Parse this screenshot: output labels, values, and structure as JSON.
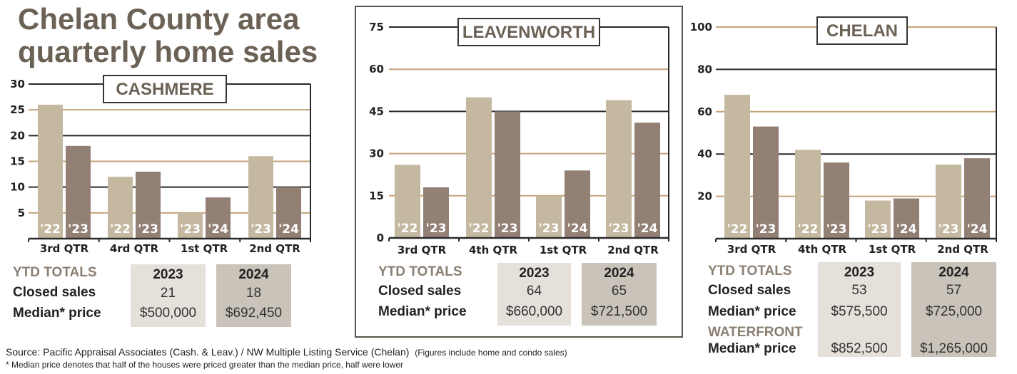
{
  "title_line1": "Chelan County area",
  "title_line2": "quarterly home sales",
  "colors": {
    "bar_prior": "#c4b8a0",
    "bar_current": "#938074",
    "grid_tan": "#c3a47c",
    "grid_dark": "#2a2a2a",
    "title": "#6b6155"
  },
  "chart_data": [
    {
      "type": "bar",
      "title": "CASHMERE",
      "categories": [
        "3rd QTR",
        "4rd QTR",
        "1st QTR",
        "2nd QTR"
      ],
      "bar_labels": [
        [
          "'22",
          "'23"
        ],
        [
          "'22",
          "'23"
        ],
        [
          "'23",
          "'24"
        ],
        [
          "'23",
          "'24"
        ]
      ],
      "values": [
        [
          26,
          18
        ],
        [
          12,
          13
        ],
        [
          5,
          8
        ],
        [
          16,
          10
        ]
      ],
      "yticks": [
        5,
        10,
        15,
        20,
        25,
        30
      ],
      "grid_colors": [
        "tan",
        "dark",
        "tan",
        "dark",
        "tan",
        "dark"
      ],
      "ylim": [
        0,
        30
      ]
    },
    {
      "type": "bar",
      "title": "LEAVENWORTH",
      "categories": [
        "3rd QTR",
        "4th QTR",
        "1st QTR",
        "2nd QTR"
      ],
      "bar_labels": [
        [
          "'22",
          "'23"
        ],
        [
          "'22",
          "'23"
        ],
        [
          "'23",
          "'24"
        ],
        [
          "'23",
          "'24"
        ]
      ],
      "values": [
        [
          26,
          18
        ],
        [
          50,
          45
        ],
        [
          15,
          24
        ],
        [
          49,
          41
        ]
      ],
      "yticks": [
        0,
        15,
        30,
        45,
        60,
        75
      ],
      "grid_colors": [
        "none",
        "tan",
        "tan",
        "dark",
        "tan",
        "dark"
      ],
      "ylim": [
        0,
        75
      ]
    },
    {
      "type": "bar",
      "title": "CHELAN",
      "categories": [
        "3rd QTR",
        "4th QTR",
        "1st QTR",
        "2nd QTR"
      ],
      "bar_labels": [
        [
          "'22",
          "'23"
        ],
        [
          "'22",
          "'23"
        ],
        [
          "'23",
          "'24"
        ],
        [
          "'23",
          "'24"
        ]
      ],
      "values": [
        [
          68,
          53
        ],
        [
          42,
          36
        ],
        [
          18,
          19
        ],
        [
          35,
          38
        ]
      ],
      "yticks": [
        20,
        40,
        60,
        80,
        100
      ],
      "grid_colors": [
        "tan",
        "dark",
        "tan",
        "dark",
        "tan"
      ],
      "ylim": [
        0,
        100
      ]
    }
  ],
  "tables": {
    "cashmere": {
      "heading": "YTD TOTALS",
      "col1": "2023",
      "col2": "2024",
      "closed_label": "Closed sales",
      "median_label": "Median* price",
      "closed": [
        "21",
        "18"
      ],
      "median": [
        "$500,000",
        "$692,450"
      ]
    },
    "leavenworth": {
      "heading": "YTD TOTALS",
      "col1": "2023",
      "col2": "2024",
      "closed_label": "Closed sales",
      "median_label": "Median* price",
      "closed": [
        "64",
        "65"
      ],
      "median": [
        "$660,000",
        "$721,500"
      ]
    },
    "chelan": {
      "heading": "YTD TOTALS",
      "col1": "2023",
      "col2": "2024",
      "closed_label": "Closed sales",
      "median_label": "Median* price",
      "closed": [
        "53",
        "57"
      ],
      "median": [
        "$575,500",
        "$725,000"
      ],
      "waterfront_label": "WATERFRONT",
      "waterfront_median_label": "Median* price",
      "waterfront_median": [
        "$852,500",
        "$1,265,000"
      ]
    }
  },
  "footer": {
    "source": "Source: Pacific Appraisal Associates (Cash. & Leav.) / NW Multiple Listing Service (Chelan)",
    "source_note": "(Figures include home and condo sales)",
    "median_note": "* Median price denotes that half of the houses were priced greater than the median price, half were lower"
  }
}
